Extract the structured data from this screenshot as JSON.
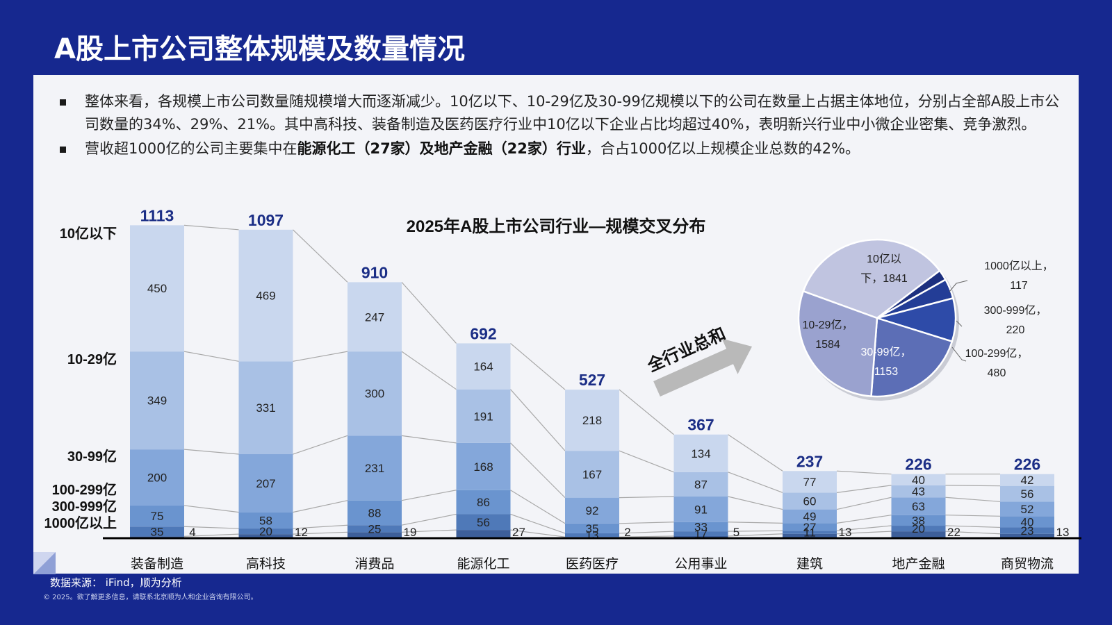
{
  "page": {
    "title": "A股上市公司整体规模及数量情况",
    "bullets": [
      {
        "text": "整体来看，各规模上市公司数量随规模增大而逐渐减少。10亿以下、10-29亿及30-99亿规模以下的公司在数量上占据主体地位，分别占全部A股上市公司数量的34%、29%、21%。其中高科技、装备制造及医药医疗行业中10亿以下企业占比均超过40%，表明新兴行业中小微企业密集、竞争激烈。"
      },
      {
        "pre": "营收超1000亿的公司主要集中在",
        "bold": "能源化工（27家）及地产金融（22家）行业",
        "post": "，合占1000亿以上规模企业总数的42%。"
      }
    ],
    "source": "数据来源： iFind，顺为分析",
    "copyright": "© 2025。欲了解更多信息，请联系北京顺为人和企业咨询有限公司。",
    "arrow_label": "全行业总和"
  },
  "chart_data": [
    {
      "type": "bar",
      "stacked": true,
      "title": "2025年A股上市公司行业—规模交叉分布",
      "categories": [
        "装备制造",
        "高科技",
        "消费品",
        "能源化工",
        "医药医疗",
        "公用事业",
        "建筑",
        "地产金融",
        "商贸物流"
      ],
      "totals": [
        1113,
        1097,
        910,
        692,
        527,
        367,
        237,
        226,
        226
      ],
      "series": [
        {
          "name": "1000亿以上",
          "values": [
            4,
            12,
            19,
            27,
            2,
            5,
            13,
            22,
            13
          ],
          "color": "#3d5f9a"
        },
        {
          "name": "300-999亿",
          "values": [
            35,
            20,
            25,
            56,
            13,
            17,
            11,
            20,
            23
          ],
          "color": "#4f79b8"
        },
        {
          "name": "100-299亿",
          "values": [
            75,
            58,
            88,
            86,
            35,
            33,
            27,
            38,
            40
          ],
          "color": "#6a94cf"
        },
        {
          "name": "30-99亿",
          "values": [
            200,
            207,
            231,
            168,
            92,
            91,
            49,
            63,
            52
          ],
          "color": "#84a7da"
        },
        {
          "name": "10-29亿",
          "values": [
            349,
            331,
            300,
            191,
            167,
            87,
            60,
            43,
            56
          ],
          "color": "#a9c1e5"
        },
        {
          "name": "10亿以下",
          "values": [
            450,
            469,
            247,
            164,
            218,
            134,
            77,
            40,
            42
          ],
          "color": "#c9d7ee"
        }
      ],
      "series_label_colors": [
        "#1f2f5a",
        "#1f2f5a",
        "#1f2f5a",
        "#1f2f5a",
        "#1f2f5a",
        "#1f2f5a"
      ],
      "total_label_color": "#1b2e86"
    },
    {
      "type": "pie",
      "title": "",
      "slices": [
        {
          "label": "10亿以下",
          "value": 1841,
          "color": "#c0c4e0",
          "text": [
            "10亿以",
            "下，1841"
          ]
        },
        {
          "label": "1000亿以上",
          "value": 117,
          "color": "#1c2f7f",
          "text": [
            "1000亿以上，",
            "117"
          ]
        },
        {
          "label": "300-999亿",
          "value": 220,
          "color": "#233d96",
          "text": [
            "300-999亿，",
            "220"
          ]
        },
        {
          "label": "100-299亿",
          "value": 480,
          "color": "#2e4ba8",
          "text": [
            "100-299亿，",
            "480"
          ]
        },
        {
          "label": "30-99亿",
          "value": 1153,
          "color": "#5c6eb6",
          "text": [
            "30-99亿，",
            "1153"
          ]
        },
        {
          "label": "10-29亿",
          "value": 1584,
          "color": "#9aa2cf",
          "text": [
            "10-29亿，",
            "1584"
          ]
        }
      ]
    }
  ]
}
